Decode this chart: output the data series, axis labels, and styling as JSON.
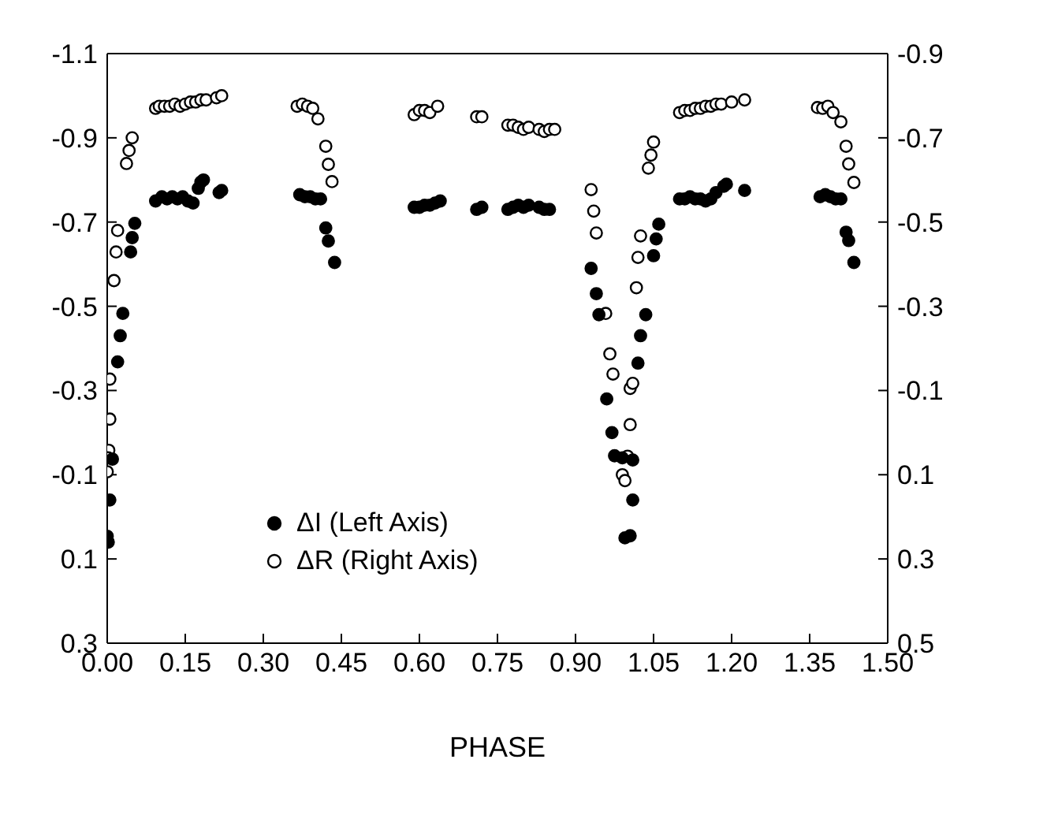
{
  "chart_data": {
    "type": "scatter",
    "xlabel": "PHASE",
    "xlim": [
      0,
      1.5
    ],
    "xticks": [
      {
        "value": 0,
        "label": "0.00"
      },
      {
        "value": 0.15,
        "label": "0.15"
      },
      {
        "value": 0.3,
        "label": "0.30"
      },
      {
        "value": 0.45,
        "label": "0.45"
      },
      {
        "value": 0.6,
        "label": "0.60"
      },
      {
        "value": 0.75,
        "label": "0.75"
      },
      {
        "value": 0.9,
        "label": "0.90"
      },
      {
        "value": 1.05,
        "label": "1.05"
      },
      {
        "value": 1.2,
        "label": "1.20"
      },
      {
        "value": 1.35,
        "label": "1.35"
      },
      {
        "value": 1.5,
        "label": "1.50"
      }
    ],
    "ylim": [
      0.3,
      -1.1
    ],
    "yticks": [
      0.3,
      0.1,
      -0.1,
      -0.3,
      -0.5,
      -0.7,
      -0.9,
      -1.1
    ],
    "y2lim": [
      0.5,
      -0.9
    ],
    "y2ticks": [
      0.5,
      0.3,
      0.1,
      -0.1,
      -0.3,
      -0.5,
      -0.7,
      -0.9
    ],
    "legend": "bottom left",
    "marker": "circle",
    "series": [
      {
        "name": "ΔI (Left Axis)",
        "color": "#000000",
        "axis": "y",
        "x": [
          0.01,
          0.005,
          0.0,
          0.002,
          0.02,
          0.025,
          0.03,
          0.045,
          0.048,
          0.053,
          0.093,
          0.105,
          0.115,
          0.125,
          0.135,
          0.145,
          0.155,
          0.165,
          0.175,
          0.18,
          0.185,
          0.215,
          0.22,
          0.37,
          0.38,
          0.39,
          0.4,
          0.41,
          0.42,
          0.425,
          0.437,
          0.59,
          0.6,
          0.61,
          0.62,
          0.63,
          0.64,
          0.71,
          0.72,
          0.77,
          0.78,
          0.79,
          0.8,
          0.81,
          0.83,
          0.84,
          0.85,
          0.93,
          0.94,
          0.945,
          0.96,
          0.97,
          0.975,
          0.99,
          1.01,
          1.01,
          0.995,
          1.005,
          1.02,
          1.025,
          1.035,
          1.05,
          1.055,
          1.06,
          1.1,
          1.11,
          1.12,
          1.13,
          1.14,
          1.15,
          1.16,
          1.17,
          1.185,
          1.19,
          1.225,
          1.37,
          1.38,
          1.39,
          1.4,
          1.41,
          1.42,
          1.425,
          1.435
        ],
        "values": [
          -0.137,
          -0.04,
          0.046,
          0.06,
          -0.368,
          -0.43,
          -0.483,
          -0.629,
          -0.663,
          -0.697,
          -0.75,
          -0.76,
          -0.755,
          -0.76,
          -0.755,
          -0.76,
          -0.75,
          -0.745,
          -0.78,
          -0.795,
          -0.8,
          -0.77,
          -0.775,
          -0.765,
          -0.76,
          -0.76,
          -0.755,
          -0.755,
          -0.686,
          -0.655,
          -0.604,
          -0.735,
          -0.735,
          -0.74,
          -0.74,
          -0.745,
          -0.75,
          -0.73,
          -0.735,
          -0.73,
          -0.735,
          -0.74,
          -0.735,
          -0.74,
          -0.735,
          -0.73,
          -0.73,
          -0.59,
          -0.53,
          -0.48,
          -0.28,
          -0.2,
          -0.145,
          -0.14,
          -0.135,
          -0.04,
          0.05,
          0.045,
          -0.365,
          -0.43,
          -0.48,
          -0.62,
          -0.66,
          -0.695,
          -0.755,
          -0.755,
          -0.76,
          -0.755,
          -0.755,
          -0.75,
          -0.755,
          -0.77,
          -0.785,
          -0.79,
          -0.775,
          -0.76,
          -0.765,
          -0.76,
          -0.755,
          -0.755,
          -0.676,
          -0.656,
          -0.604
        ]
      },
      {
        "name": "ΔR (Right Axis)",
        "color": "#000000",
        "axis": "y2",
        "x": [
          0.005,
          0.005,
          0.003,
          0.0,
          0.002,
          0.013,
          0.017,
          0.02,
          0.037,
          0.042,
          0.048,
          0.093,
          0.1,
          0.11,
          0.12,
          0.13,
          0.14,
          0.15,
          0.16,
          0.17,
          0.18,
          0.19,
          0.21,
          0.22,
          0.365,
          0.375,
          0.385,
          0.395,
          0.405,
          0.42,
          0.425,
          0.432,
          0.59,
          0.6,
          0.61,
          0.62,
          0.635,
          0.71,
          0.72,
          0.77,
          0.78,
          0.79,
          0.8,
          0.81,
          0.83,
          0.84,
          0.85,
          0.86,
          0.93,
          0.935,
          0.94,
          0.958,
          0.966,
          0.972,
          0.99,
          0.995,
          1.0,
          1.005,
          1.005,
          1.01,
          1.017,
          1.02,
          1.025,
          1.04,
          1.045,
          1.05,
          1.1,
          1.11,
          1.12,
          1.13,
          1.14,
          1.15,
          1.16,
          1.17,
          1.18,
          1.2,
          1.225,
          1.365,
          1.375,
          1.385,
          1.395,
          1.41,
          1.42,
          1.425,
          1.435
        ],
        "values": [
          -0.127,
          -0.032,
          0.042,
          0.093,
          0.06,
          -0.361,
          -0.429,
          -0.48,
          -0.639,
          -0.67,
          -0.7,
          -0.77,
          -0.775,
          -0.775,
          -0.775,
          -0.78,
          -0.775,
          -0.78,
          -0.785,
          -0.785,
          -0.79,
          -0.79,
          -0.795,
          -0.8,
          -0.775,
          -0.78,
          -0.775,
          -0.77,
          -0.745,
          -0.68,
          -0.637,
          -0.596,
          -0.755,
          -0.765,
          -0.765,
          -0.76,
          -0.775,
          -0.75,
          -0.75,
          -0.73,
          -0.73,
          -0.725,
          -0.72,
          -0.725,
          -0.72,
          -0.715,
          -0.72,
          -0.72,
          -0.577,
          -0.526,
          -0.474,
          -0.283,
          -0.187,
          -0.139,
          0.1,
          0.114,
          0.056,
          -0.019,
          -0.105,
          -0.117,
          -0.344,
          -0.416,
          -0.467,
          -0.628,
          -0.659,
          -0.69,
          -0.76,
          -0.765,
          -0.765,
          -0.77,
          -0.77,
          -0.775,
          -0.775,
          -0.78,
          -0.78,
          -0.785,
          -0.79,
          -0.772,
          -0.77,
          -0.775,
          -0.76,
          -0.738,
          -0.68,
          -0.638,
          -0.594
        ]
      }
    ]
  }
}
